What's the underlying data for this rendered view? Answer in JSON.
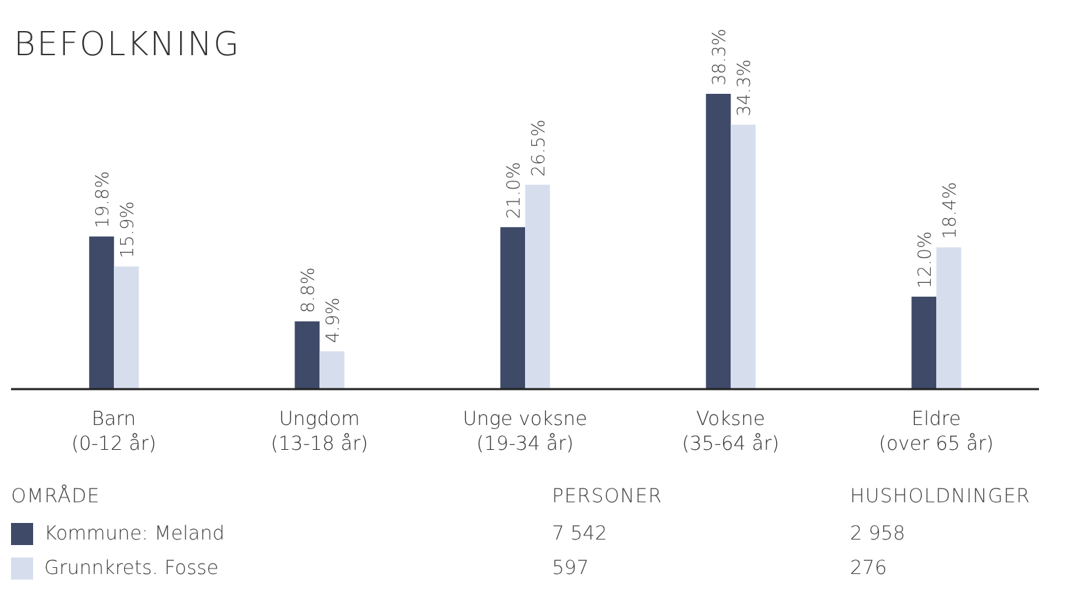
{
  "chart_data": {
    "type": "bar",
    "title": "BEFOLKNING",
    "categories": [
      "Barn\n(0-12 år)",
      "Ungdom\n(13-18 år)",
      "Unge voksne\n(19-34 år)",
      "Voksne\n(35-64 år)",
      "Eldre\n(over 65 år)"
    ],
    "series": [
      {
        "name": "Kommune: Meland",
        "color": "#3e4a68",
        "values": [
          19.8,
          8.8,
          21.0,
          38.3,
          12.0
        ],
        "value_labels": [
          "19.8%",
          "8.8%",
          "21.0%",
          "38.3%",
          "12.0%"
        ]
      },
      {
        "name": "Grunnkrets. Fosse",
        "color": "#d6deee",
        "values": [
          15.9,
          4.9,
          26.5,
          34.3,
          18.4
        ],
        "value_labels": [
          "15.9%",
          "4.9%",
          "26.5%",
          "34.3%",
          "18.4%"
        ]
      }
    ],
    "legend": "bottom",
    "legend_title": "OMRÅDE",
    "annotations": [
      "PERSONER",
      "HUSHOLDNINGER",
      "7 542",
      "2 958",
      "597",
      "276"
    ]
  }
}
